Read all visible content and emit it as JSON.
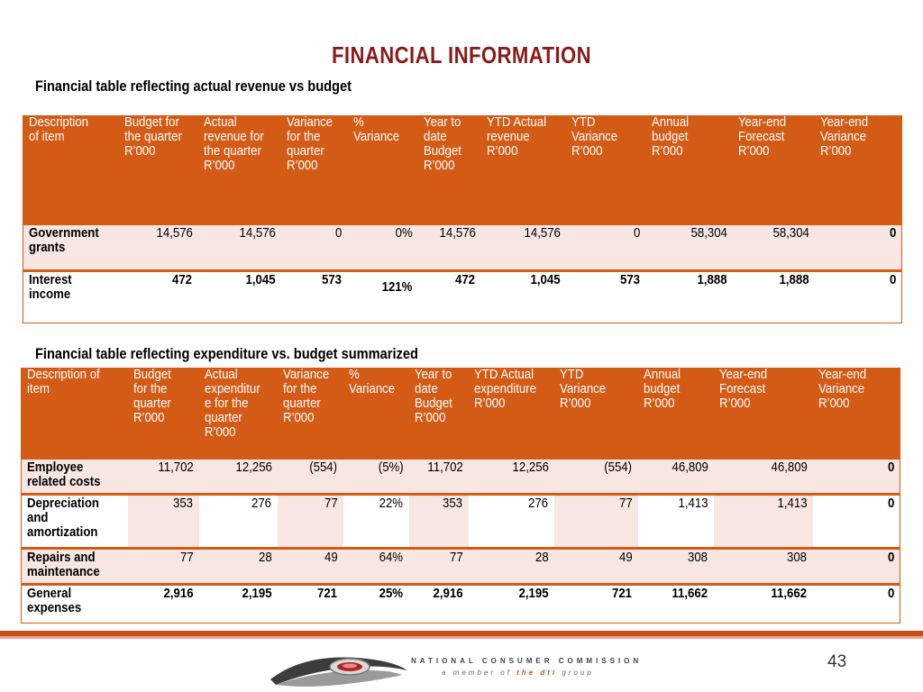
{
  "title": "FINANCIAL  INFORMATION",
  "revenue_heading": "Financial table reflecting actual revenue vs budget",
  "revenue_table": {
    "headers": [
      "Description\nof item",
      "Budget for\nthe quarter\nR’000",
      "Actual\nrevenue for\nthe quarter\nR’000",
      "Variance\nfor the\nquarter\nR’000",
      "%\nVariance",
      "Year to\ndate\nBudget\nR’000",
      "YTD Actual\nrevenue\nR’000",
      "YTD\nVariance\nR’000",
      "Annual\nbudget\nR’000",
      "Year-end\nForecast\nR’000",
      "Year-end\nVariance\nR’000"
    ],
    "rows": [
      [
        "Government\ngrants",
        "14,576",
        "14,576",
        "0",
        "0%",
        "14,576",
        "14,576",
        "0",
        "58,304",
        "58,304",
        "0"
      ],
      [
        "Interest\nincome",
        "472",
        "1,045",
        "573",
        "121%",
        "472",
        "1,045",
        "573",
        "1,888",
        "1,888",
        "0"
      ]
    ]
  },
  "expenditure_heading": "Financial table reflecting expenditure vs. budget summarized",
  "expenditure_table": {
    "headers": [
      "Description of\nitem",
      "Budget\nfor the\nquarter\nR’000",
      "Actual\nexpenditur\ne for the\nquarter\nR’000",
      "Variance\nfor the\nquarter\nR’000",
      "%\nVariance",
      "Year to\ndate\nBudget\nR’000",
      "YTD Actual\nexpenditure\nR’000",
      "YTD\nVariance\nR’000",
      "Annual\nbudget\nR’000",
      "Year-end\nForecast\nR’000",
      "Year-end\nVariance\nR’000"
    ],
    "rows": [
      [
        "Employee\nrelated costs",
        "11,702",
        "12,256",
        "(554)",
        "(5%)",
        "11,702",
        "12,256",
        "(554)",
        "46,809",
        "46,809",
        "0"
      ],
      [
        "Depreciation\nand\namortization",
        "353",
        "276",
        "77",
        "22%",
        "353",
        "276",
        "77",
        "1,413",
        "1,413",
        "0"
      ],
      [
        "Repairs and\nmaintenance",
        "77",
        "28",
        "49",
        "64%",
        "77",
        "28",
        "49",
        "308",
        "308",
        "0"
      ],
      [
        "General\nexpenses",
        "2,916",
        "2,195",
        "721",
        "25%",
        "2,916",
        "2,195",
        "721",
        "11,662",
        "11,662",
        "0"
      ]
    ]
  },
  "footer": {
    "brand": "NATIONAL CONSUMER COMMISSION",
    "tagline_pre": "a member of ",
    "tagline_dti": "the dti",
    "tagline_post": " group",
    "page_number": "43"
  },
  "colors": {
    "header_fill": "#d35b16",
    "title": "#8b1a1a",
    "alt_row": "#f7e6e2"
  }
}
